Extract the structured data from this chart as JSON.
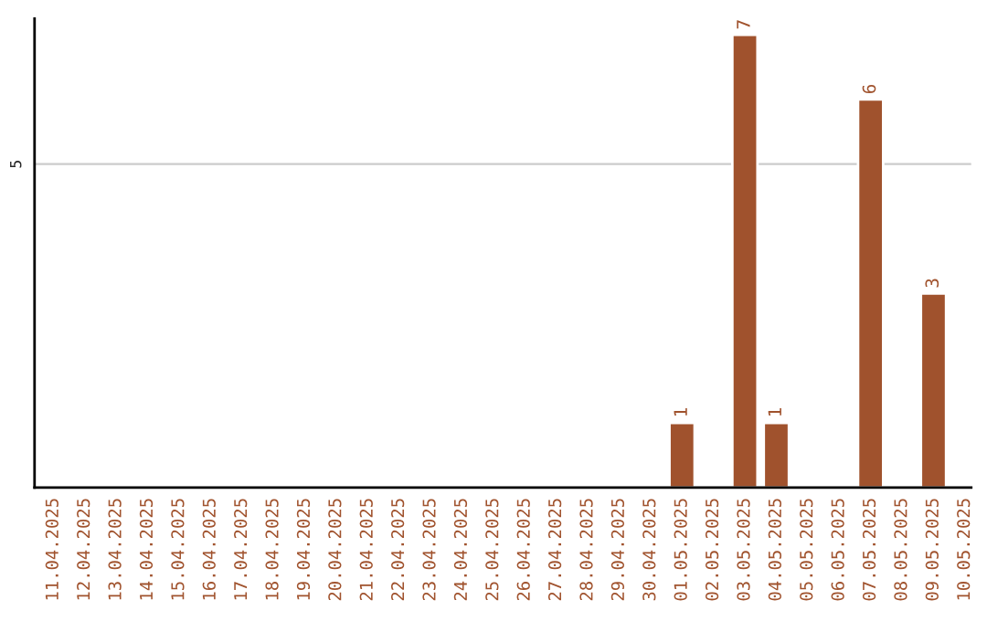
{
  "chart_data": {
    "type": "bar",
    "categories": [
      "11.04.2025",
      "12.04.2025",
      "13.04.2025",
      "14.04.2025",
      "15.04.2025",
      "16.04.2025",
      "17.04.2025",
      "18.04.2025",
      "19.04.2025",
      "20.04.2025",
      "21.04.2025",
      "22.04.2025",
      "23.04.2025",
      "24.04.2025",
      "25.04.2025",
      "26.04.2025",
      "27.04.2025",
      "28.04.2025",
      "29.04.2025",
      "30.04.2025",
      "01.05.2025",
      "02.05.2025",
      "03.05.2025",
      "04.05.2025",
      "05.05.2025",
      "06.05.2025",
      "07.05.2025",
      "08.05.2025",
      "09.05.2025",
      "10.05.2025"
    ],
    "values": [
      null,
      null,
      null,
      null,
      null,
      null,
      null,
      null,
      null,
      null,
      null,
      null,
      null,
      null,
      null,
      null,
      null,
      null,
      null,
      null,
      1,
      null,
      7,
      1,
      null,
      null,
      6,
      null,
      3,
      null
    ],
    "value_labels": [
      null,
      null,
      null,
      null,
      null,
      null,
      null,
      null,
      null,
      null,
      null,
      null,
      null,
      null,
      null,
      null,
      null,
      null,
      null,
      null,
      "1",
      null,
      "7",
      "1",
      null,
      null,
      "6",
      null,
      "3",
      null
    ],
    "color": "#a0522d",
    "ylim": [
      0,
      7.25
    ],
    "yticks": [
      5
    ],
    "grid": "y",
    "legend": false
  }
}
